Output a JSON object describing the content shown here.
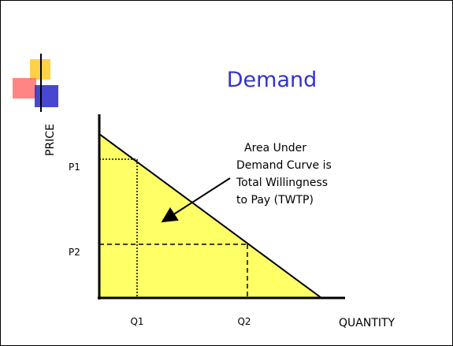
{
  "title": "Demand",
  "y_axis_label": "PRICE",
  "x_axis_label": "QUANTITY",
  "price_labels": [
    "P1",
    "P2"
  ],
  "quantity_labels": [
    "Q1",
    "Q2"
  ],
  "annotation": [
    "Area Under",
    "Demand Curve is",
    "Total Willingness",
    "to Pay (TWTP)"
  ]
}
